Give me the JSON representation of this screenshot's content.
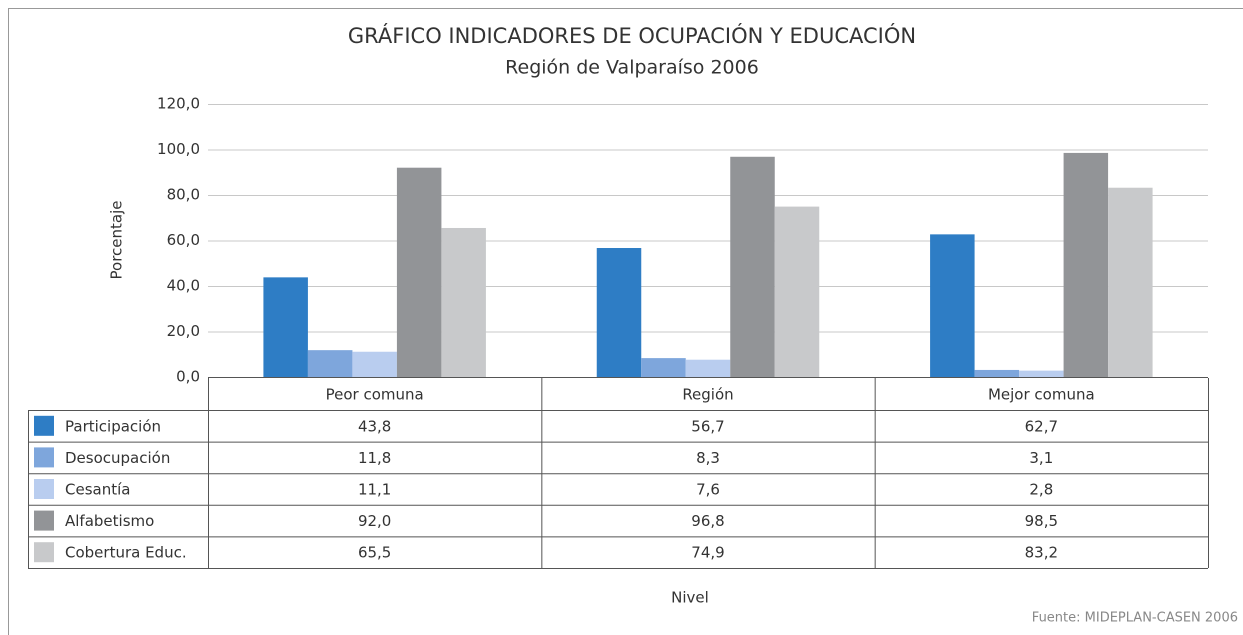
{
  "chart_data": {
    "type": "bar",
    "title": "GRÁFICO INDICADORES DE OCUPACIÓN Y EDUCACIÓN",
    "subtitle": "Región de Valparaíso 2006",
    "y_label": "Porcentaje",
    "x_label": "Nivel",
    "source": "Fuente: MIDEPLAN-CASEN 2006",
    "categories": [
      "Peor comuna",
      "Región",
      "Mejor comuna"
    ],
    "ylim": [
      0,
      120
    ],
    "yticks": [
      {
        "value": 0,
        "label": "0,0"
      },
      {
        "value": 20,
        "label": "20,0"
      },
      {
        "value": 40,
        "label": "40,0"
      },
      {
        "value": 60,
        "label": "60,0"
      },
      {
        "value": 80,
        "label": "80,0"
      },
      {
        "value": 100,
        "label": "100,0"
      },
      {
        "value": 120,
        "label": "120,0"
      }
    ],
    "grid": true,
    "series": [
      {
        "name": "Participación",
        "color": "#2e7dc5",
        "values": [
          43.8,
          56.7,
          62.7
        ],
        "value_labels": [
          "43,8",
          "56,7",
          "62,7"
        ]
      },
      {
        "name": "Desocupación",
        "color": "#7ea6dc",
        "values": [
          11.8,
          8.3,
          3.1
        ],
        "value_labels": [
          "11,8",
          "8,3",
          "3,1"
        ]
      },
      {
        "name": "Cesantía",
        "color": "#b9cdef",
        "values": [
          11.1,
          7.6,
          2.8
        ],
        "value_labels": [
          "11,1",
          "7,6",
          "2,8"
        ]
      },
      {
        "name": "Alfabetismo",
        "color": "#929497",
        "values": [
          92.0,
          96.8,
          98.5
        ],
        "value_labels": [
          "92,0",
          "96,8",
          "98,5"
        ]
      },
      {
        "name": "Cobertura Educ.",
        "color": "#c8c9cb",
        "values": [
          65.5,
          74.9,
          83.2
        ],
        "value_labels": [
          "65,5",
          "74,9",
          "83,2"
        ]
      }
    ]
  }
}
